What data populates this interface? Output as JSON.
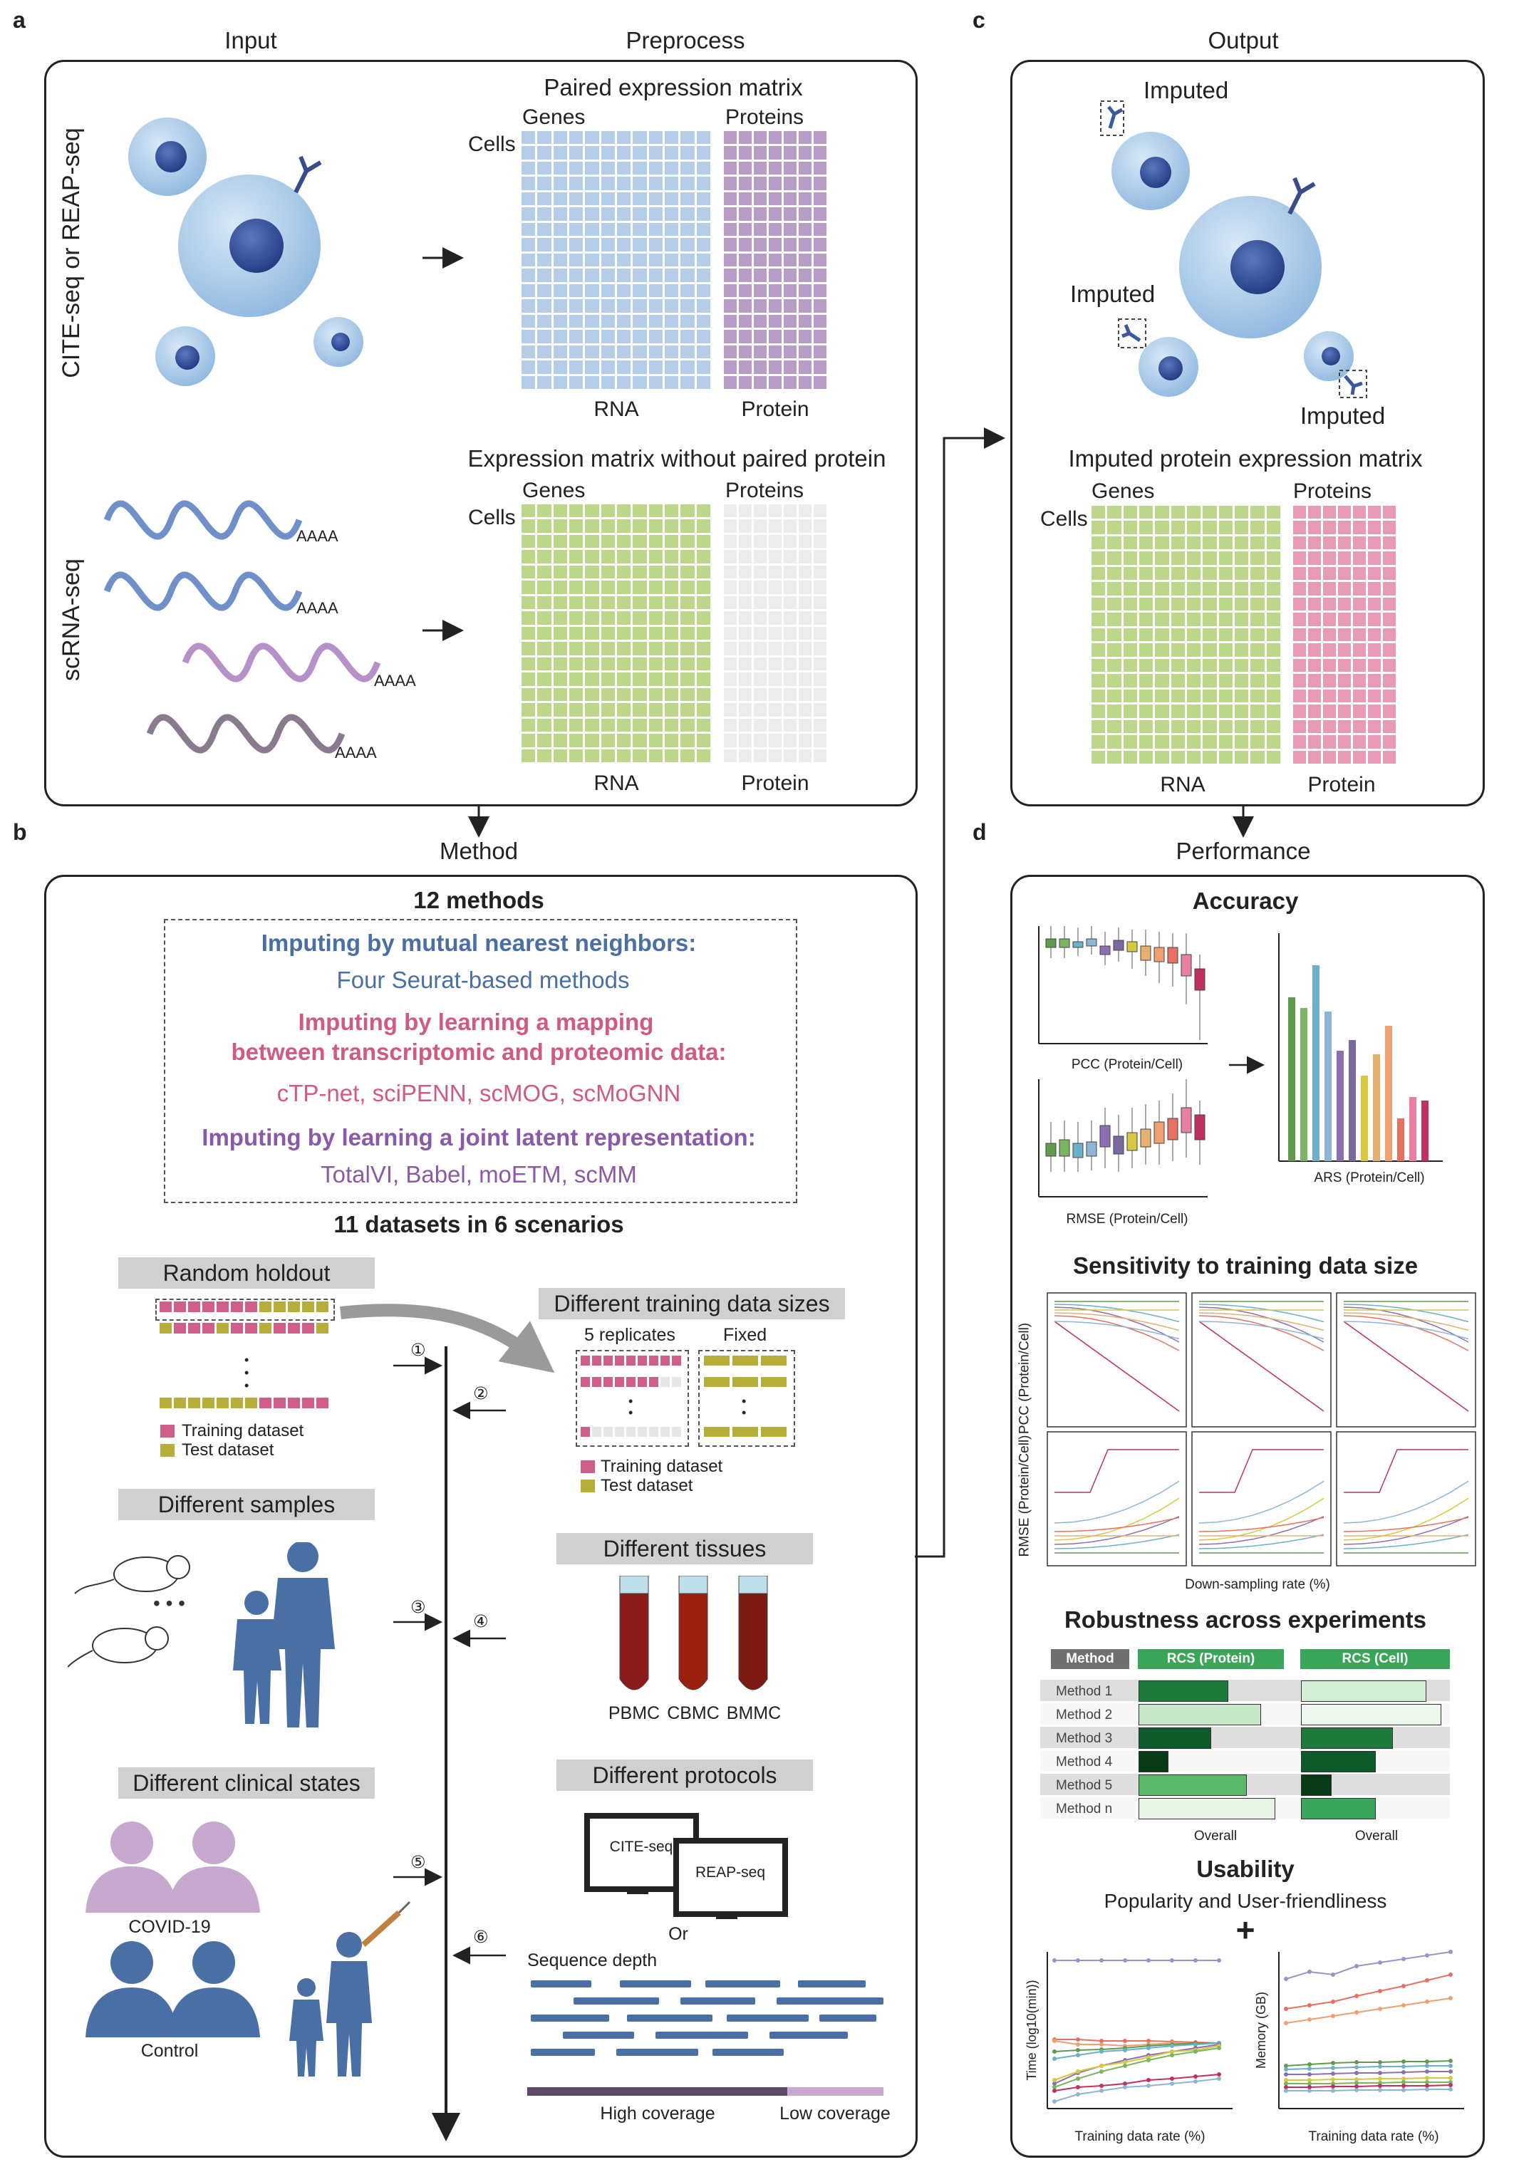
{
  "panel_letters": {
    "a": "a",
    "b": "b",
    "c": "c",
    "d": "d"
  },
  "headers": {
    "input": "Input",
    "preprocess": "Preprocess",
    "output": "Output",
    "method": "Method",
    "performance": "Performance"
  },
  "panel_a": {
    "cite_label": "CITE-seq or REAP-seq",
    "sc_label": "scRNA-seq",
    "paired_title": "Paired expression matrix",
    "unpaired_title": "Expression matrix without paired protein",
    "genes": "Genes",
    "proteins": "Proteins",
    "cells": "Cells",
    "rna": "RNA",
    "protein": "Protein",
    "polya": "AAAA"
  },
  "panel_c": {
    "imputed": "Imputed",
    "matrix_title": "Imputed protein expression matrix",
    "genes": "Genes",
    "proteins": "Proteins",
    "cells": "Cells",
    "rna": "RNA",
    "protein": "Protein"
  },
  "panel_b": {
    "methods_title": "12 methods",
    "cat1_title": "Imputing by mutual nearest neighbors:",
    "cat1_methods": "Four Seurat-based methods",
    "cat2_title_1": "Imputing by learning a mapping",
    "cat2_title_2": "between transcriptomic and proteomic data:",
    "cat2_methods": "cTP-net, sciPENN, scMOG, scMoGNN",
    "cat3_title": "Imputing by learning a joint latent representation:",
    "cat3_methods": "TotalVI, Babel, moETM, scMM",
    "datasets_title": "11 datasets in 6 scenarios",
    "random_holdout": "Random holdout",
    "training_dataset": "Training dataset",
    "test_dataset": "Test dataset",
    "diff_training": "Different training data sizes",
    "replicates": "5 replicates",
    "fixed": "Fixed",
    "diff_samples": "Different samples",
    "diff_tissues": "Different tissues",
    "tissues": [
      "PBMC",
      "CBMC",
      "BMMC"
    ],
    "diff_clinical": "Different clinical states",
    "covid": "COVID-19",
    "control": "Control",
    "diff_protocols": "Different protocols",
    "cite_seq": "CITE-seq",
    "reap_seq": "REAP-seq",
    "or": "Or",
    "seq_depth": "Sequence depth",
    "high_cov": "High coverage",
    "low_cov": "Low coverage",
    "steps": [
      "①",
      "②",
      "③",
      "④",
      "⑤",
      "⑥"
    ],
    "dots": "•",
    "colors": {
      "blue": "#4a6fa5",
      "pink": "#d05a82",
      "purple": "#8a5aa8",
      "train": "#cf5f8a",
      "test": "#b6ae3a"
    }
  },
  "panel_d": {
    "accuracy": "Accuracy",
    "pcc_cap": "PCC (Protein/Cell)",
    "rmse_cap": "RMSE (Protein/Cell)",
    "ars_cap": "ARS (Protein/Cell)",
    "sensitivity": "Sensitivity to training data size",
    "pcc_axis": "PCC (Protein/Cell)",
    "rmse_axis": "RMSE (Protein/Cell)",
    "down_axis": "Down-sampling rate (%)",
    "robustness": "Robustness across experiments",
    "table_head": [
      "Method",
      "RCS (Protein)",
      "RCS (Cell)"
    ],
    "table_rows": [
      "Method 1",
      "Method 2",
      "Method 3",
      "Method 4",
      "Method 5",
      "Method n"
    ],
    "overall": "Overall",
    "usability": "Usability",
    "popularity": "Popularity and User-friendliness",
    "plus": "+",
    "time_axis": "Time (log10(min))",
    "memory_axis": "Memory (GB)",
    "train_rate": "Training data rate (%)"
  }
}
